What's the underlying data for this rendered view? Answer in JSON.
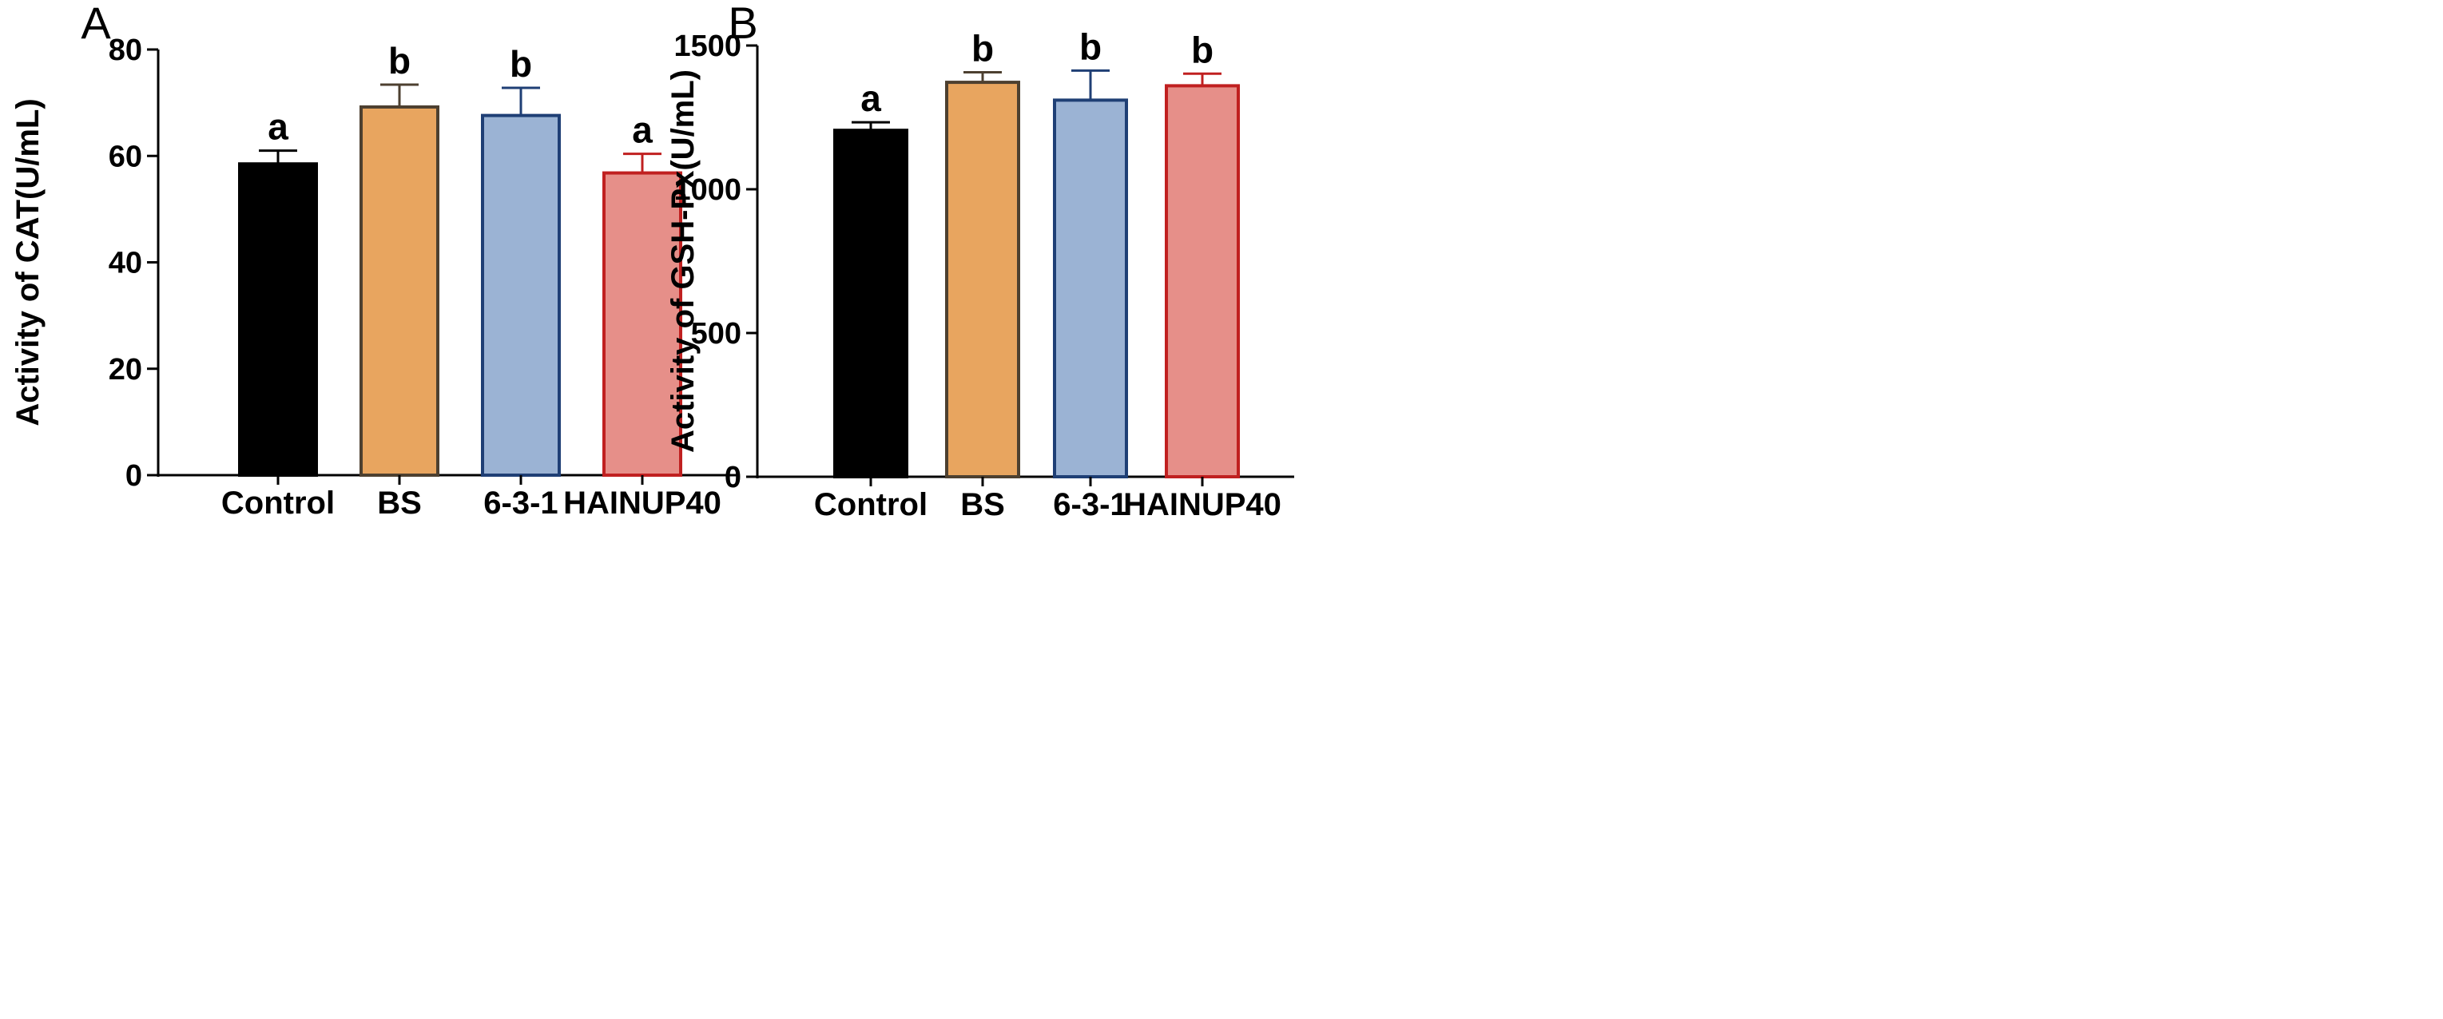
{
  "chart_data": [
    {
      "type": "bar",
      "panel_label": "A",
      "ylabel": "Activity of CAT(U/mL)",
      "xlabel": "",
      "ylim": [
        0,
        80
      ],
      "yticks": [
        0,
        20,
        40,
        60,
        80
      ],
      "categories": [
        "Control",
        "BS",
        "6-3-1",
        "HAINUP40"
      ],
      "values": [
        58.5,
        69.2,
        67.6,
        56.8
      ],
      "error": [
        2.5,
        4.2,
        5.2,
        3.6
      ],
      "significance": [
        "a",
        "b",
        "b",
        "a"
      ],
      "fill_colors": [
        "#000000",
        "#e8a55f",
        "#9bb3d4",
        "#e68f89"
      ],
      "edge_colors": [
        "#000000",
        "#4d4030",
        "#1f3f75",
        "#c02020"
      ],
      "grid": false,
      "legend": "none"
    },
    {
      "type": "bar",
      "panel_label": "B",
      "ylabel": "Activity of GSH-Px(U/mL)",
      "xlabel": "",
      "ylim": [
        0,
        1500
      ],
      "yticks": [
        0,
        500,
        1000,
        1500
      ],
      "categories": [
        "Control",
        "BS",
        "6-3-1",
        "HAINUP40"
      ],
      "values": [
        1205,
        1372,
        1310,
        1360
      ],
      "error": [
        28,
        35,
        103,
        42
      ],
      "significance": [
        "a",
        "b",
        "b",
        "b"
      ],
      "fill_colors": [
        "#000000",
        "#e8a55f",
        "#9bb3d4",
        "#e68f89"
      ],
      "edge_colors": [
        "#000000",
        "#4d4030",
        "#1f3f75",
        "#c02020"
      ],
      "grid": false,
      "legend": "none"
    }
  ]
}
